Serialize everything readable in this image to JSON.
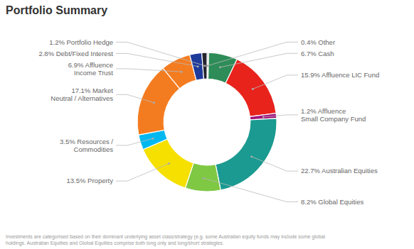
{
  "chart_data": {
    "type": "donut",
    "title": "Portfolio Summary",
    "categories": [
      "0.4% Other",
      "6.7% Cash",
      "15.9% Affluence LIC Fund",
      "1.2% Affluence\nSmall Company Fund",
      "22.7% Australian Equities",
      "8.2% Global Equities",
      "13.5% Property",
      "3.5% Resources /\nCommodities",
      "17.1% Market\nNeutral / Alternatives",
      "6.9% Affluence\nIncome Trust",
      "2.8% Debt/Fixed Interest",
      "1.2% Portfolio Hedge"
    ],
    "values": [
      0.4,
      6.7,
      15.9,
      1.2,
      22.7,
      8.2,
      13.5,
      3.5,
      17.1,
      6.9,
      2.8,
      1.2
    ],
    "colors": [
      "#b0b0b0",
      "#2d8c57",
      "#e8231c",
      "#a0107a",
      "#1a9a90",
      "#7ec843",
      "#f5e000",
      "#00b8f0",
      "#f47c20",
      "#f47c20",
      "#1e3a9a",
      "#252530"
    ],
    "annotations": [
      "Investments are categorised based on their dominant underlying asset class/strategy (e.g. some Australian equity funds may include some global\nholdings. Australian Equities and Global Equities comprise both long only and long/short strategies."
    ]
  }
}
